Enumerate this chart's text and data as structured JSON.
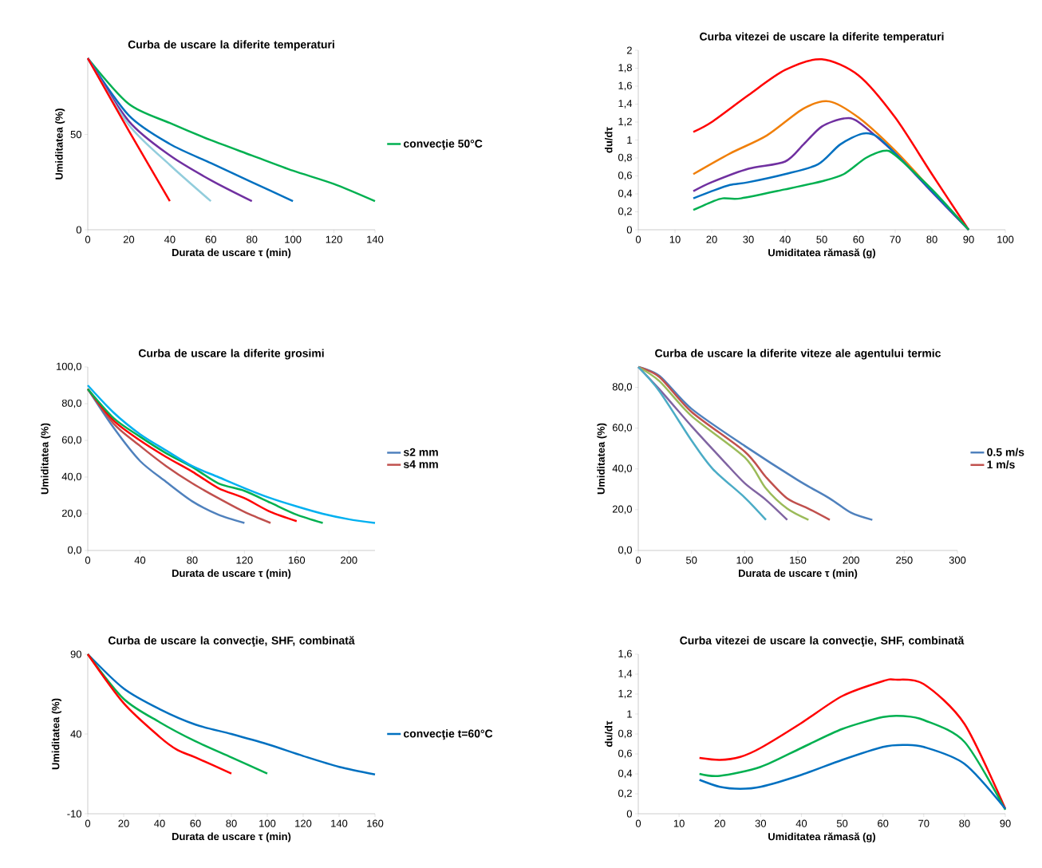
{
  "chart_data": [
    {
      "type": "line",
      "title": "Curba de uscare la diferite temperaturi",
      "xlabel": "Durata de uscare τ (min)",
      "ylabel": "Umiditatea (%)",
      "xlim": [
        0,
        140
      ],
      "ylim": [
        0,
        90
      ],
      "xticks": [
        0,
        20,
        40,
        60,
        80,
        100,
        120,
        140
      ],
      "yticks": [
        0,
        50
      ],
      "legend": "right",
      "series": [
        {
          "name": "convecţie 50°C",
          "color": "#00b050",
          "x": [
            0,
            20,
            40,
            60,
            80,
            100,
            120,
            140
          ],
          "values": [
            90,
            66,
            56,
            47,
            39,
            31,
            24,
            15
          ]
        },
        {
          "color": "#0070c0",
          "x": [
            0,
            20,
            40,
            60,
            80,
            100
          ],
          "values": [
            90,
            60,
            45,
            35,
            25,
            15
          ]
        },
        {
          "color": "#7030a0",
          "x": [
            0,
            20,
            40,
            60,
            80
          ],
          "values": [
            90,
            57,
            39,
            26,
            15
          ]
        },
        {
          "color": "#92cddc",
          "x": [
            0,
            20,
            40,
            60
          ],
          "values": [
            90,
            55,
            34,
            15
          ]
        },
        {
          "color": "#ff0000",
          "x": [
            0,
            20,
            40
          ],
          "values": [
            90,
            52,
            15
          ]
        }
      ]
    },
    {
      "type": "line",
      "title": "Curba vitezei de uscare la diferite temperaturi",
      "xlabel": "Umiditatea rămasă (g)",
      "ylabel": "du/dτ",
      "xlim": [
        0,
        100
      ],
      "ylim": [
        0,
        2
      ],
      "xticks": [
        0,
        10,
        20,
        30,
        40,
        50,
        60,
        70,
        80,
        90,
        100
      ],
      "yticks": [
        0,
        {
          "value": 0.2,
          "label": "0,2"
        },
        {
          "value": 0.4,
          "label": "0,4"
        },
        {
          "value": 0.6,
          "label": "0,6"
        },
        {
          "value": 0.8,
          "label": "0,8"
        },
        1,
        {
          "value": 1.2,
          "label": "1,2"
        },
        {
          "value": 1.4,
          "label": "1,4"
        },
        {
          "value": 1.6,
          "label": "1,6"
        },
        {
          "value": 1.8,
          "label": "1,8"
        },
        2
      ],
      "series": [
        {
          "color": "#ff0000",
          "x": [
            15,
            20,
            30,
            40,
            50,
            60,
            70,
            80,
            90
          ],
          "values": [
            1.09,
            1.2,
            1.5,
            1.78,
            1.9,
            1.72,
            1.25,
            0.62,
            0
          ]
        },
        {
          "color": "#f07f09",
          "x": [
            15,
            25,
            35,
            45,
            52,
            60,
            70,
            80,
            90
          ],
          "values": [
            0.62,
            0.85,
            1.05,
            1.35,
            1.43,
            1.25,
            0.88,
            0.44,
            0
          ]
        },
        {
          "color": "#7030a0",
          "x": [
            15,
            20,
            30,
            40,
            45,
            50,
            56,
            60,
            70,
            80,
            90
          ],
          "values": [
            0.43,
            0.53,
            0.68,
            0.76,
            0.95,
            1.15,
            1.24,
            1.2,
            0.85,
            0.42,
            0
          ]
        },
        {
          "color": "#0070c0",
          "x": [
            15,
            20,
            25,
            30,
            40,
            49,
            55,
            61,
            65,
            70,
            80,
            90
          ],
          "values": [
            0.35,
            0.43,
            0.5,
            0.53,
            0.62,
            0.73,
            0.95,
            1.07,
            1.04,
            0.85,
            0.43,
            0
          ]
        },
        {
          "color": "#00b050",
          "x": [
            15,
            20,
            23,
            28,
            40,
            50,
            56,
            62,
            67,
            70,
            80,
            90
          ],
          "values": [
            0.22,
            0.31,
            0.35,
            0.35,
            0.45,
            0.54,
            0.62,
            0.8,
            0.88,
            0.83,
            0.45,
            0
          ]
        }
      ]
    },
    {
      "type": "line",
      "title": "Curba de uscare la diferite grosimi",
      "xlabel": "Durata de uscare τ (min)",
      "ylabel": "Umiditatea (%)",
      "xlim": [
        0,
        220
      ],
      "ylim": [
        0,
        100
      ],
      "xticks": [
        0,
        40,
        80,
        120,
        160,
        200
      ],
      "yticks": [
        {
          "value": 0,
          "label": "0,0"
        },
        {
          "value": 20,
          "label": "20,0"
        },
        {
          "value": 40,
          "label": "40,0"
        },
        {
          "value": 60,
          "label": "60,0"
        },
        {
          "value": 80,
          "label": "80,0"
        },
        {
          "value": 100,
          "label": "100,0"
        }
      ],
      "legend": "right",
      "series": [
        {
          "name": "s2 mm",
          "color": "#4f81bd",
          "x": [
            0,
            20,
            40,
            60,
            80,
            100,
            120
          ],
          "values": [
            88,
            66.7,
            48.8,
            37.4,
            26.8,
            19.5,
            15
          ]
        },
        {
          "name": "s4 mm",
          "color": "#c0504d",
          "x": [
            0,
            20,
            40,
            60,
            80,
            100,
            120,
            140
          ],
          "values": [
            88,
            69,
            57,
            46,
            36.6,
            28.5,
            21,
            15
          ]
        },
        {
          "color": "#ff0000",
          "x": [
            0,
            20,
            40,
            60,
            80,
            100,
            120,
            140,
            160
          ],
          "values": [
            88,
            70.7,
            60,
            51,
            43,
            34,
            28.5,
            21,
            16
          ]
        },
        {
          "color": "#00b050",
          "x": [
            0,
            20,
            40,
            60,
            80,
            100,
            120,
            140,
            160,
            180
          ],
          "values": [
            88,
            72,
            62,
            53,
            45.5,
            36.6,
            32.5,
            26,
            19.5,
            15
          ]
        },
        {
          "color": "#00b0f0",
          "x": [
            0,
            20,
            40,
            60,
            80,
            100,
            120,
            140,
            160,
            180,
            200,
            220
          ],
          "values": [
            90,
            75,
            63.4,
            54.5,
            46,
            40,
            34,
            28.5,
            24,
            20,
            17,
            15
          ]
        }
      ]
    },
    {
      "type": "line",
      "title": "Curba de uscare la diferite viteze ale agentului termic",
      "xlabel": "Durata de uscare τ (min)",
      "ylabel": "Umiditatea (%)",
      "xlim": [
        0,
        300
      ],
      "ylim": [
        0,
        90
      ],
      "xticks": [
        0,
        50,
        100,
        150,
        200,
        250,
        300
      ],
      "yticks": [
        {
          "value": 0,
          "label": "0,0"
        },
        {
          "value": 20,
          "label": "20,0"
        },
        {
          "value": 40,
          "label": "40,0"
        },
        {
          "value": 60,
          "label": "60,0"
        },
        {
          "value": 80,
          "label": "80,0"
        }
      ],
      "legend": "right",
      "series": [
        {
          "name": "0.5 m/s",
          "color": "#4f81bd",
          "x": [
            0,
            20,
            50,
            100,
            150,
            180,
            200,
            220
          ],
          "values": [
            90,
            85.6,
            69.5,
            51.3,
            34.5,
            25.5,
            18.5,
            15
          ]
        },
        {
          "name": "1 m/s",
          "color": "#c0504d",
          "x": [
            0,
            20,
            50,
            100,
            120,
            140,
            160,
            180
          ],
          "values": [
            90,
            85,
            68,
            48.5,
            36,
            25.5,
            20.5,
            15
          ]
        },
        {
          "color": "#9bbb59",
          "x": [
            0,
            20,
            50,
            100,
            120,
            140,
            160
          ],
          "values": [
            90,
            83,
            66,
            45.7,
            30.4,
            20.5,
            15
          ]
        },
        {
          "color": "#8064a2",
          "x": [
            0,
            20,
            50,
            80,
            100,
            120,
            140
          ],
          "values": [
            90,
            79,
            61,
            44,
            33,
            24.8,
            15
          ]
        },
        {
          "color": "#4bacc6",
          "x": [
            0,
            20,
            50,
            70,
            100,
            120
          ],
          "values": [
            90,
            78,
            54,
            40,
            26,
            15
          ]
        }
      ]
    },
    {
      "type": "line",
      "title": "Curba de uscare la convecţie, SHF, combinată",
      "xlabel": "Durata de uscare τ (min)",
      "ylabel": "Umiditatea (%)",
      "xlim": [
        0,
        160
      ],
      "ylim": [
        -10,
        90
      ],
      "xticks": [
        0,
        20,
        40,
        60,
        80,
        100,
        120,
        140,
        160
      ],
      "yticks": [
        -10,
        40,
        90
      ],
      "legend": "right",
      "series": [
        {
          "name": "convecţie t=60°C",
          "color": "#0070c0",
          "x": [
            0,
            20,
            40,
            60,
            80,
            100,
            120,
            140,
            160
          ],
          "values": [
            90,
            68.5,
            55.6,
            45.9,
            40,
            33.6,
            26.2,
            19.4,
            14.6
          ]
        },
        {
          "color": "#00b050",
          "x": [
            0,
            20,
            40,
            60,
            80,
            100
          ],
          "values": [
            90,
            62,
            47.4,
            35.4,
            25.3,
            15.2
          ]
        },
        {
          "color": "#ff0000",
          "x": [
            0,
            20,
            40,
            50,
            60,
            80
          ],
          "values": [
            90,
            59.3,
            38.2,
            29.9,
            25.3,
            15.2
          ]
        }
      ]
    },
    {
      "type": "line",
      "title": "Curba vitezei de uscare la convecţie, SHF, combinată",
      "xlabel": "Umiditatea rămasă (g)",
      "ylabel": "du/dτ",
      "xlim": [
        0,
        90
      ],
      "ylim": [
        0,
        1.6
      ],
      "xticks": [
        0,
        10,
        20,
        30,
        40,
        50,
        60,
        70,
        80,
        90
      ],
      "yticks": [
        0,
        {
          "value": 0.2,
          "label": "0,2"
        },
        {
          "value": 0.4,
          "label": "0,4"
        },
        {
          "value": 0.6,
          "label": "0,6"
        },
        {
          "value": 0.8,
          "label": "0,8"
        },
        1,
        {
          "value": 1.2,
          "label": "1,2"
        },
        {
          "value": 1.4,
          "label": "1,4"
        },
        {
          "value": 1.6,
          "label": "1,6"
        }
      ],
      "series": [
        {
          "color": "#ff0000",
          "x": [
            15,
            20,
            25,
            30,
            40,
            50,
            60,
            63,
            70,
            80,
            90
          ],
          "values": [
            0.56,
            0.54,
            0.57,
            0.66,
            0.91,
            1.18,
            1.33,
            1.345,
            1.3,
            0.9,
            0.05
          ]
        },
        {
          "color": "#00b050",
          "x": [
            15,
            20,
            30,
            40,
            50,
            60,
            65,
            70,
            80,
            90
          ],
          "values": [
            0.4,
            0.38,
            0.47,
            0.66,
            0.85,
            0.97,
            0.98,
            0.94,
            0.72,
            0.04
          ]
        },
        {
          "color": "#0070c0",
          "x": [
            15,
            20,
            25,
            30,
            40,
            50,
            60,
            65,
            70,
            80,
            90
          ],
          "values": [
            0.34,
            0.27,
            0.25,
            0.27,
            0.39,
            0.54,
            0.67,
            0.69,
            0.67,
            0.5,
            0.05
          ]
        }
      ]
    }
  ]
}
